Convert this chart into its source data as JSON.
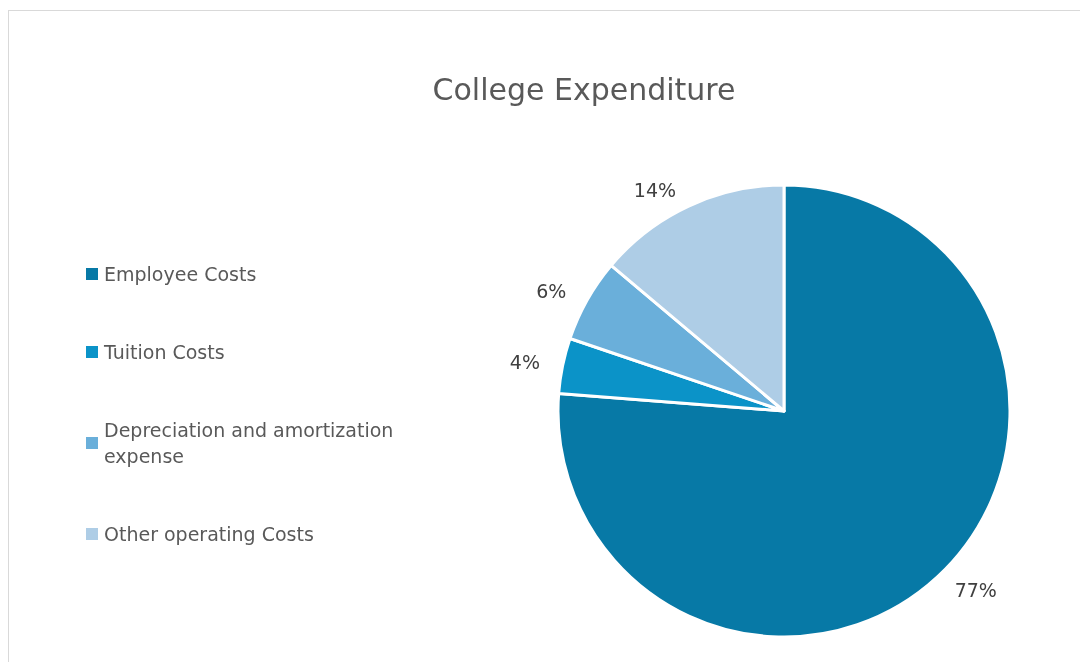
{
  "chart_data": {
    "type": "pie",
    "title": "College Expenditure",
    "categories": [
      "Employee Costs",
      "Tuition Costs",
      "Depreciation and amortization expense",
      "Other operating Costs"
    ],
    "values": [
      77,
      4,
      6,
      14
    ],
    "colors": [
      "#0779a6",
      "#0b93c8",
      "#6aafda",
      "#aecde6"
    ],
    "value_labels": [
      "77%",
      "4%",
      "6%",
      "14%"
    ],
    "legend": "left"
  }
}
